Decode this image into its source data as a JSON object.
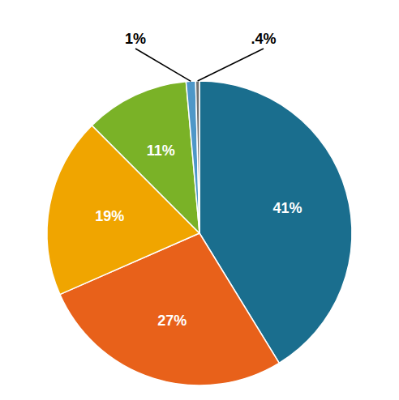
{
  "chart_data": {
    "type": "pie",
    "values": [
      41,
      27,
      19,
      11,
      1,
      0.4
    ],
    "value_labels": [
      "41%",
      "27%",
      "19%",
      "11%",
      "1%",
      ".4%"
    ],
    "colors": [
      "#1a6e8e",
      "#e8611a",
      "#f0a500",
      "#7ab227",
      "#4e97c8",
      "#717171"
    ],
    "data_labels": true
  }
}
